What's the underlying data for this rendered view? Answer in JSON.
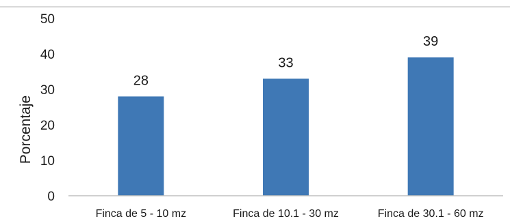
{
  "chart_data": {
    "type": "bar",
    "title": "",
    "xlabel": "",
    "ylabel": "Porcentaje",
    "categories": [
      "Finca de 5 - 10 mz",
      "Finca de 10.1 - 30 mz",
      "Finca de 30.1 - 60 mz"
    ],
    "values": [
      28,
      33,
      39
    ],
    "data_labels": [
      "28",
      "33",
      "39"
    ],
    "yticks": [
      0,
      10,
      20,
      30,
      40,
      50
    ],
    "ylim": [
      0,
      50
    ],
    "grid": false,
    "legend": "none",
    "bar_color": "#3f78b5"
  }
}
